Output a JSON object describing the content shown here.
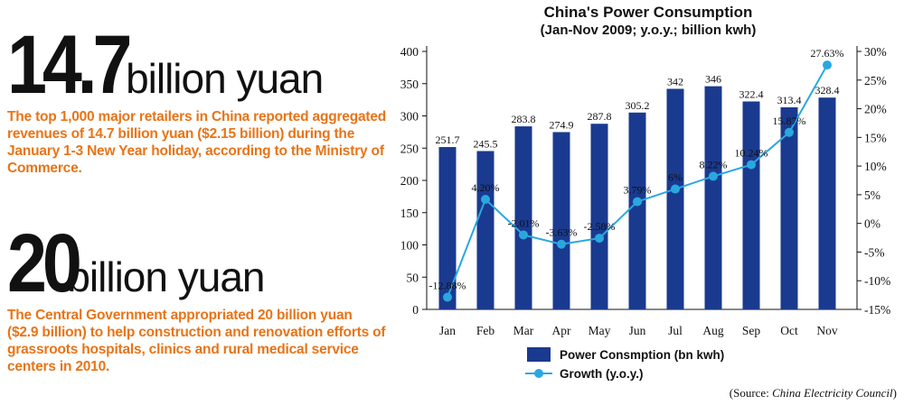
{
  "stats": [
    {
      "number": "14.7",
      "unit": "billion yuan",
      "text": "The top 1,000 major retailers in China reported aggregated revenues of 14.7 billion yuan ($2.15 billion) during the January 1-3 New Year holiday, according to the Ministry of Commerce."
    },
    {
      "number": "20",
      "unit": "billion yuan",
      "text": "The Central Government appropriated 20 billion yuan ($2.9 billion) to help construction and renovation efforts of grassroots hospitals, clinics and rural medical service centers in 2010."
    }
  ],
  "source": {
    "prefix": "(Source: ",
    "name": "China Electricity Council",
    "suffix": ")"
  },
  "colors": {
    "bar": "#1a3a8f",
    "line": "#29a8e0",
    "accent": "#e87417"
  },
  "chart_data": {
    "type": "bar",
    "title": "China's Power Consumption",
    "subtitle": "(Jan-Nov 2009; y.o.y.; billion kwh)",
    "categories": [
      "Jan",
      "Feb",
      "Mar",
      "Apr",
      "May",
      "Jun",
      "Jul",
      "Aug",
      "Sep",
      "Oct",
      "Nov"
    ],
    "series": [
      {
        "name": "Power Consmption (bn kwh)",
        "type": "bar",
        "axis": "left",
        "values": [
          251.7,
          245.5,
          283.8,
          274.9,
          287.8,
          305.2,
          342,
          346,
          322.4,
          313.4,
          328.4
        ],
        "labels": [
          "251.7",
          "245.5",
          "283.8",
          "274.9",
          "287.8",
          "305.2",
          "342",
          "346",
          "322.4",
          "313.4",
          "328.4"
        ]
      },
      {
        "name": "Growth (y.o.y.)",
        "type": "line",
        "axis": "right",
        "values": [
          -12.88,
          4.2,
          -2.01,
          -3.63,
          -2.58,
          3.79,
          6,
          8.22,
          10.24,
          15.87,
          27.63
        ],
        "labels": [
          "-12.88%",
          "4.20%",
          "-2.01%",
          "-3.63%",
          "-2.58%",
          "3.79%",
          "6%",
          "8.22%",
          "10.24%",
          "15.87%",
          "27.63%"
        ]
      }
    ],
    "left_axis": {
      "ylim": [
        0,
        400
      ],
      "ticks": [
        0,
        50,
        100,
        150,
        200,
        250,
        300,
        350,
        400
      ],
      "tick_labels": [
        "0",
        "50",
        "100",
        "150",
        "200",
        "250",
        "300",
        "350",
        "400"
      ]
    },
    "right_axis": {
      "ylim": [
        -15,
        30
      ],
      "ticks": [
        -15,
        -10,
        -5,
        0,
        5,
        10,
        15,
        20,
        25,
        30
      ],
      "tick_labels": [
        "-15%",
        "-10%",
        "-5%",
        "0%",
        "5%",
        "10%",
        "15%",
        "20%",
        "25%",
        "30%"
      ]
    },
    "legend_position": "bottom",
    "grid": false
  }
}
